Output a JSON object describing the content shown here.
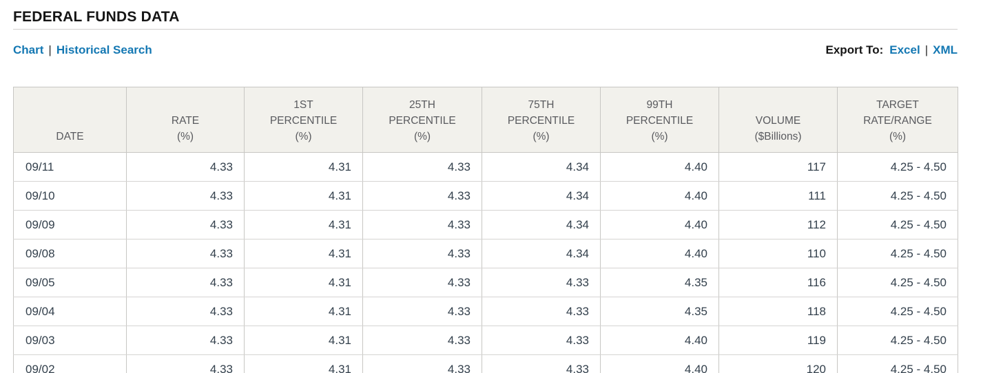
{
  "page": {
    "title": "FEDERAL FUNDS DATA"
  },
  "nav": {
    "separator": "|",
    "links": [
      {
        "label": "Chart"
      },
      {
        "label": "Historical Search"
      }
    ],
    "export": {
      "label": "Export To:",
      "options": [
        {
          "label": "Excel"
        },
        {
          "label": "XML"
        }
      ]
    }
  },
  "colors": {
    "link_blue": "#1478b3",
    "header_bg": "#f2f1ec",
    "table_border": "#c7c6c3",
    "row_border": "#d5d4d2",
    "cell_text": "#33404c",
    "header_text": "#595a5e"
  },
  "table": {
    "columns": [
      {
        "lines": [
          "DATE"
        ]
      },
      {
        "lines": [
          "RATE",
          "(%)"
        ]
      },
      {
        "lines": [
          "1ST",
          "PERCENTILE",
          "(%)"
        ]
      },
      {
        "lines": [
          "25TH",
          "PERCENTILE",
          "(%)"
        ]
      },
      {
        "lines": [
          "75TH",
          "PERCENTILE",
          "(%)"
        ]
      },
      {
        "lines": [
          "99TH",
          "PERCENTILE",
          "(%)"
        ]
      },
      {
        "lines": [
          "VOLUME",
          "($Billions)"
        ]
      },
      {
        "lines": [
          "TARGET",
          "RATE/RANGE",
          "(%)"
        ]
      }
    ],
    "rows": [
      [
        "09/11",
        "4.33",
        "4.31",
        "4.33",
        "4.34",
        "4.40",
        "117",
        "4.25 - 4.50"
      ],
      [
        "09/10",
        "4.33",
        "4.31",
        "4.33",
        "4.34",
        "4.40",
        "111",
        "4.25 - 4.50"
      ],
      [
        "09/09",
        "4.33",
        "4.31",
        "4.33",
        "4.34",
        "4.40",
        "112",
        "4.25 - 4.50"
      ],
      [
        "09/08",
        "4.33",
        "4.31",
        "4.33",
        "4.34",
        "4.40",
        "110",
        "4.25 - 4.50"
      ],
      [
        "09/05",
        "4.33",
        "4.31",
        "4.33",
        "4.33",
        "4.35",
        "116",
        "4.25 - 4.50"
      ],
      [
        "09/04",
        "4.33",
        "4.31",
        "4.33",
        "4.33",
        "4.35",
        "118",
        "4.25 - 4.50"
      ],
      [
        "09/03",
        "4.33",
        "4.31",
        "4.33",
        "4.33",
        "4.40",
        "119",
        "4.25 - 4.50"
      ],
      [
        "09/02",
        "4.33",
        "4.31",
        "4.33",
        "4.33",
        "4.40",
        "120",
        "4.25 - 4.50"
      ]
    ]
  }
}
